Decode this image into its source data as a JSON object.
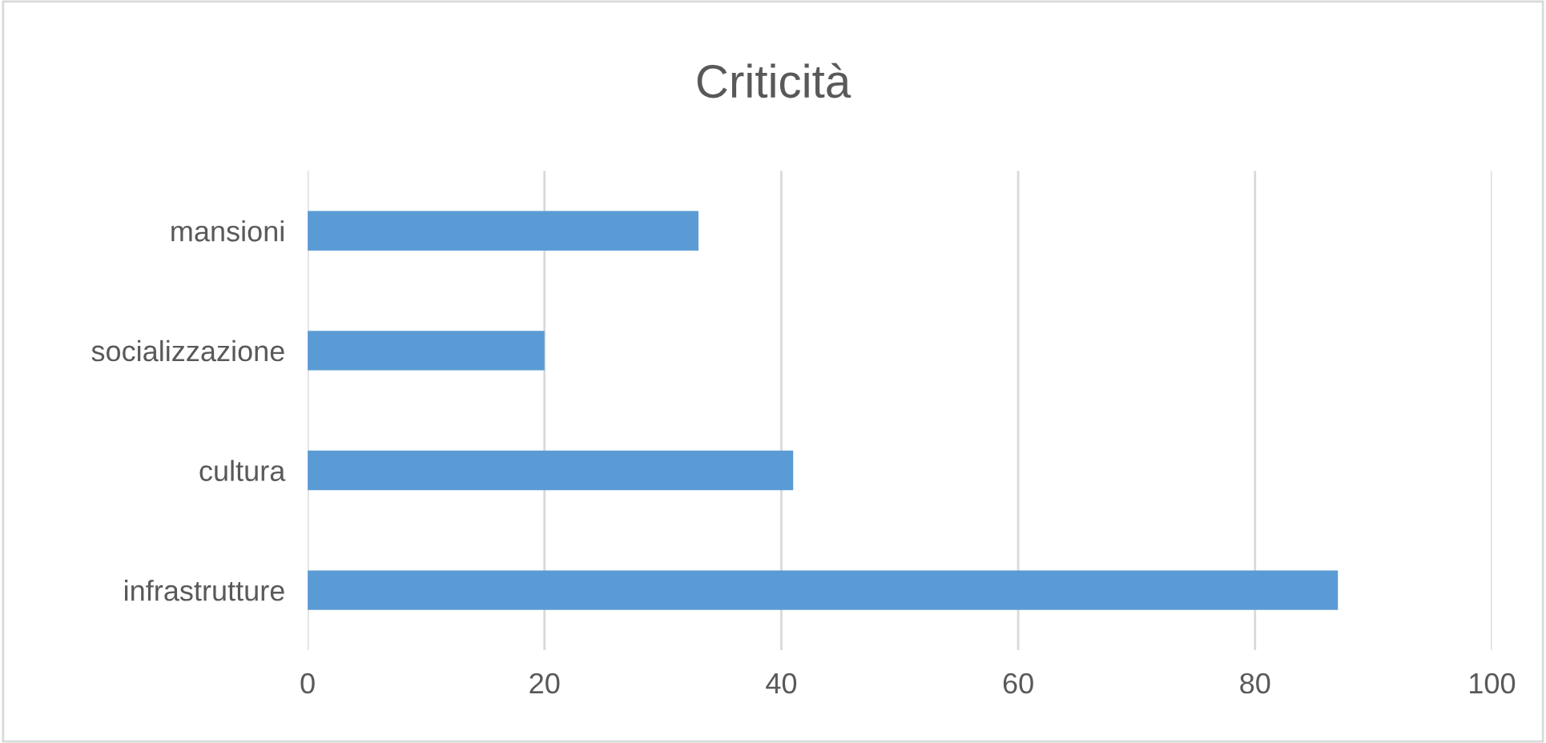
{
  "chart_data": {
    "type": "bar",
    "title": "Criticità",
    "orientation": "horizontal",
    "categories": [
      "mansioni",
      "socializzazione",
      "cultura",
      "infrastrutture"
    ],
    "values": [
      33,
      20,
      41,
      87
    ],
    "color": "#5b9bd5",
    "xlim": [
      0,
      100
    ],
    "xticks": [
      0,
      20,
      40,
      60,
      80,
      100
    ],
    "grid": "x"
  }
}
